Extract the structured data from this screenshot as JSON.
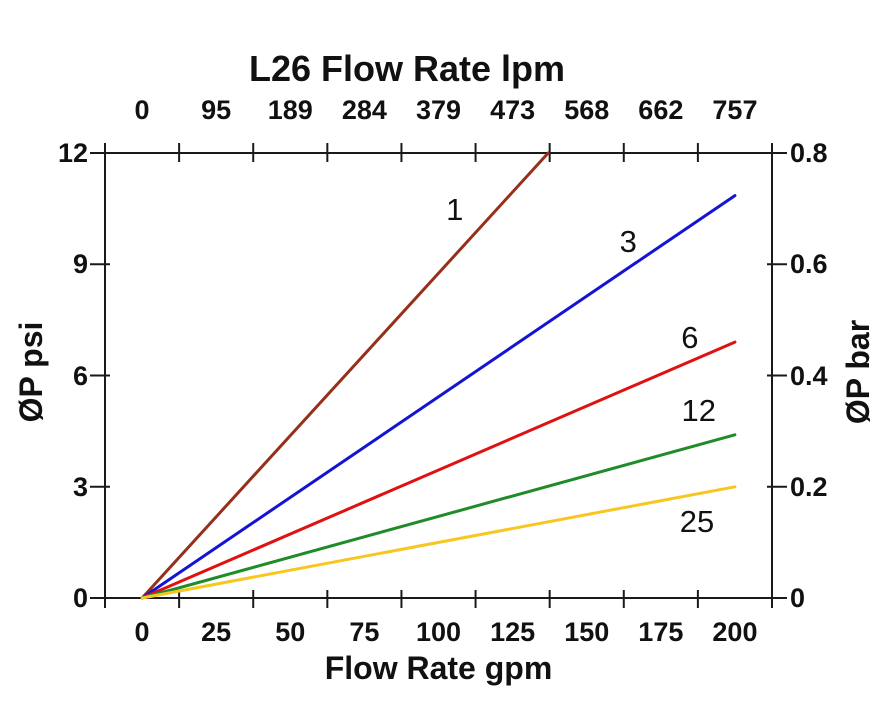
{
  "chart_data": {
    "type": "line",
    "title": "L26 Flow Rate lpm",
    "grid": false,
    "legend": "inline-labels-on-lines",
    "axis_color": "#1a1a1a",
    "axes": {
      "top": {
        "title": "L26 Flow Rate lpm",
        "unit": "lpm",
        "tick_labels": [
          "0",
          "95",
          "189",
          "284",
          "379",
          "473",
          "568",
          "662",
          "757"
        ]
      },
      "bottom": {
        "title": "Flow Rate gpm",
        "unit": "gpm",
        "min": 0,
        "max": 200,
        "tick_labels": [
          "0",
          "25",
          "50",
          "75",
          "100",
          "125",
          "150",
          "175",
          "200"
        ]
      },
      "left": {
        "title": "ØP psi",
        "unit": "psi",
        "min": 0,
        "max": 12,
        "tick_labels": [
          "0",
          "3",
          "6",
          "9",
          "12"
        ]
      },
      "right": {
        "title": "ØP bar",
        "unit": "bar",
        "min": 0,
        "max": 0.8,
        "tick_labels": [
          "0",
          "0.2",
          "0.4",
          "0.6",
          "0.8"
        ]
      }
    },
    "series": [
      {
        "name": "1",
        "color": "#96301a",
        "points_gpm_psi": [
          [
            0,
            0
          ],
          [
            137,
            12
          ]
        ],
        "label_pos_gpm_psi": [
          105.5,
          10.45
        ]
      },
      {
        "name": "3",
        "color": "#1414d2",
        "points_gpm_psi": [
          [
            0,
            0
          ],
          [
            200,
            10.85
          ]
        ],
        "label_pos_gpm_psi": [
          164.0,
          9.6
        ]
      },
      {
        "name": "6",
        "color": "#e01111",
        "points_gpm_psi": [
          [
            0,
            0
          ],
          [
            200,
            6.9
          ]
        ],
        "label_pos_gpm_psi": [
          184.8,
          7.0
        ]
      },
      {
        "name": "12",
        "color": "#1e8c28",
        "points_gpm_psi": [
          [
            0,
            0
          ],
          [
            200,
            4.4
          ]
        ],
        "label_pos_gpm_psi": [
          187.8,
          5.03
        ]
      },
      {
        "name": "25",
        "color": "#f7c71f",
        "points_gpm_psi": [
          [
            0,
            0
          ],
          [
            200,
            3.0
          ]
        ],
        "label_pos_gpm_psi": [
          187.2,
          2.05
        ]
      }
    ]
  }
}
